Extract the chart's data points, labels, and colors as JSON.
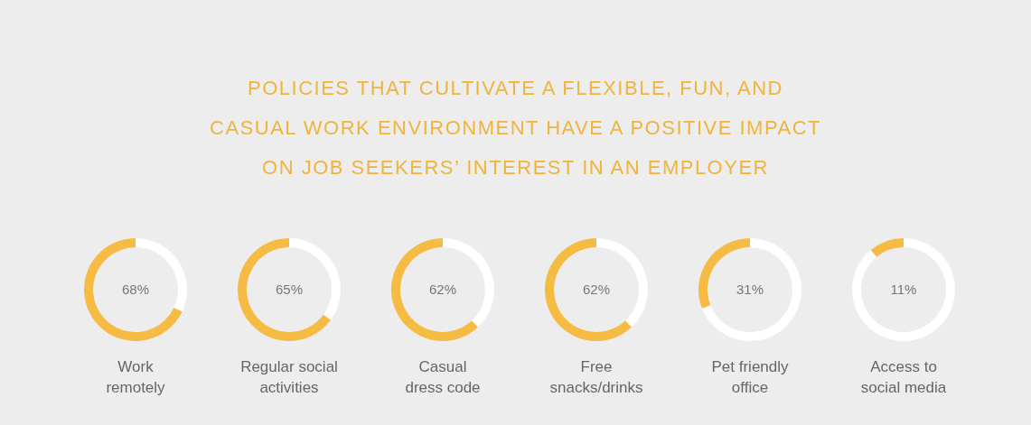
{
  "chart_data": [
    {
      "type": "other",
      "title": "POLICIES THAT CULTIVATE A FLEXIBLE, FUN, AND CASUAL WORK ENVIRONMENT HAVE A POSITIVE IMPACT ON JOB SEEKERS’ INTEREST IN AN EMPLOYER"
    },
    {
      "type": "donut",
      "title": "Work remotely",
      "categories": [
        null,
        null
      ],
      "values": [
        68,
        32
      ],
      "colors": [
        "#f6bb42",
        "#ffffff"
      ],
      "value_labels": [
        "68%",
        null
      ]
    },
    {
      "type": "donut",
      "title": "Regular social activities",
      "categories": [
        null,
        null
      ],
      "values": [
        65,
        35
      ],
      "colors": [
        "#f6bb42",
        "#ffffff"
      ],
      "value_labels": [
        "65%",
        null
      ]
    },
    {
      "type": "donut",
      "title": "Casual dress code",
      "categories": [
        null,
        null
      ],
      "values": [
        62,
        38
      ],
      "colors": [
        "#f6bb42",
        "#ffffff"
      ],
      "value_labels": [
        "62%",
        null
      ]
    },
    {
      "type": "donut",
      "title": "Free snacks/drinks",
      "categories": [
        null,
        null
      ],
      "values": [
        62,
        38
      ],
      "colors": [
        "#f6bb42",
        "#ffffff"
      ],
      "value_labels": [
        "62%",
        null
      ]
    },
    {
      "type": "donut",
      "title": "Pet friendly office",
      "categories": [
        null,
        null
      ],
      "values": [
        31,
        69
      ],
      "colors": [
        "#f6bb42",
        "#ffffff"
      ],
      "value_labels": [
        "31%",
        null
      ]
    },
    {
      "type": "donut",
      "title": "Access to social media",
      "categories": [
        null,
        null
      ],
      "values": [
        11,
        89
      ],
      "colors": [
        "#f6bb42",
        "#ffffff"
      ],
      "value_labels": [
        "11%",
        null
      ]
    }
  ]
}
